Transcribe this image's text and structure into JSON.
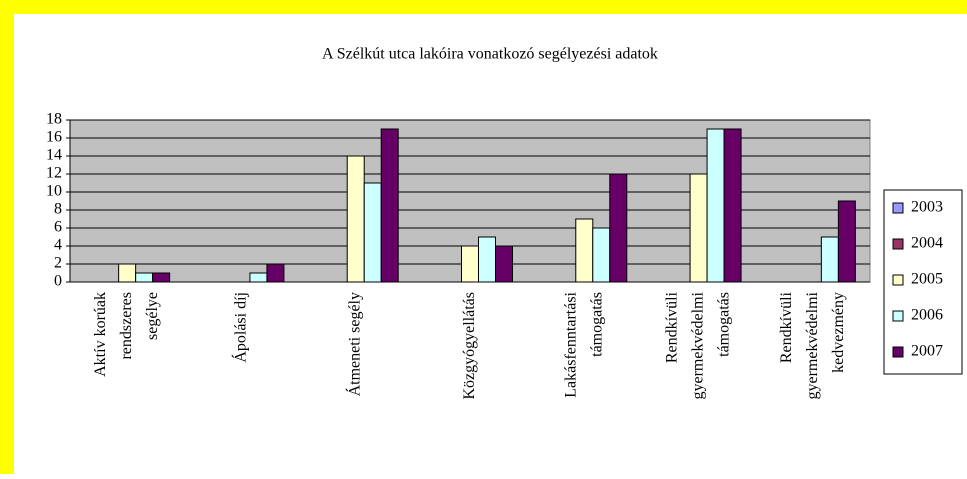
{
  "chart_data": {
    "type": "bar",
    "title": "A Szélkút utca lakóira vonatkozó segélyezési adatok",
    "categories": [
      "Aktív korúak\nrendszeres\nsegélye",
      "Ápolási díj",
      "Átmeneti segély",
      "Közgyógyellátás",
      "Lakásfenntartási\ntámogatás",
      "Rendkívüli\ngyermekvédelmi\ntámogatás",
      "Rendkívüli\ngyermekvédelmi\nkedvezmény"
    ],
    "series": [
      {
        "name": "2003",
        "color": "#9999ff",
        "values": [
          0,
          0,
          0,
          0,
          0,
          0,
          0
        ]
      },
      {
        "name": "2004",
        "color": "#993366",
        "values": [
          0,
          0,
          0,
          0,
          0,
          0,
          0
        ]
      },
      {
        "name": "2005",
        "color": "#ffffcc",
        "values": [
          2,
          0,
          14,
          4,
          7,
          12,
          0
        ]
      },
      {
        "name": "2006",
        "color": "#ccffff",
        "values": [
          1,
          1,
          11,
          5,
          6,
          17,
          5
        ]
      },
      {
        "name": "2007",
        "color": "#660066",
        "values": [
          1,
          2,
          17,
          4,
          12,
          17,
          9
        ]
      }
    ],
    "ylim": [
      0,
      18
    ],
    "yticks": [
      0,
      2,
      4,
      6,
      8,
      10,
      12,
      14,
      16,
      18
    ],
    "grid": true,
    "legend": "right"
  }
}
